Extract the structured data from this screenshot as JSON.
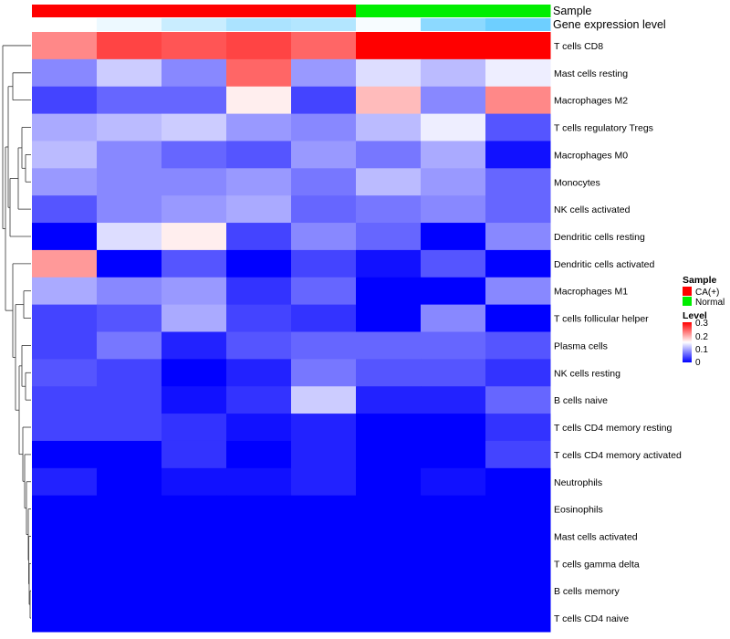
{
  "chart_data": {
    "type": "heatmap",
    "title": "",
    "columns": 8,
    "annotations": {
      "sample": {
        "label": "Sample",
        "values": [
          "CA(+)",
          "CA(+)",
          "CA(+)",
          "CA(+)",
          "CA(+)",
          "Normal",
          "Normal",
          "Normal"
        ]
      },
      "gene_expression_level": {
        "label": "Gene expression level",
        "values": [
          0.0,
          0.12,
          0.35,
          0.55,
          0.5,
          0.05,
          0.75,
          0.95
        ],
        "colors_low_high": [
          "#ffffff",
          "#66ccff"
        ]
      }
    },
    "rows": [
      "T cells CD8",
      "Mast cells resting",
      "Macrophages M2",
      "T cells regulatory  Tregs",
      "Macrophages M0",
      "Monocytes",
      "NK cells activated",
      "Dendritic cells resting",
      "Dendritic cells activated",
      "Macrophages M1",
      "T cells follicular helper",
      "Plasma cells",
      "NK cells resting",
      "B cells naive",
      "T cells CD4 memory resting",
      "T cells CD4 memory activated",
      "Neutrophils",
      "Eosinophils",
      "Mast cells activated",
      "T cells gamma delta",
      "B cells memory",
      "T cells CD4 naive"
    ],
    "values": [
      [
        0.22,
        0.26,
        0.25,
        0.26,
        0.24,
        0.3,
        0.3,
        0.3
      ],
      [
        0.08,
        0.12,
        0.08,
        0.24,
        0.09,
        0.13,
        0.11,
        0.14
      ],
      [
        0.04,
        0.06,
        0.06,
        0.16,
        0.04,
        0.19,
        0.08,
        0.22
      ],
      [
        0.1,
        0.11,
        0.12,
        0.09,
        0.08,
        0.11,
        0.14,
        0.05
      ],
      [
        0.11,
        0.08,
        0.06,
        0.05,
        0.09,
        0.07,
        0.1,
        0.01
      ],
      [
        0.09,
        0.08,
        0.08,
        0.09,
        0.07,
        0.11,
        0.09,
        0.06
      ],
      [
        0.05,
        0.08,
        0.09,
        0.1,
        0.06,
        0.07,
        0.08,
        0.06
      ],
      [
        0.0,
        0.13,
        0.16,
        0.04,
        0.08,
        0.06,
        0.0,
        0.08
      ],
      [
        0.21,
        0.0,
        0.05,
        0.0,
        0.04,
        0.01,
        0.05,
        0.0
      ],
      [
        0.1,
        0.08,
        0.09,
        0.03,
        0.06,
        0.0,
        0.0,
        0.08
      ],
      [
        0.04,
        0.05,
        0.1,
        0.04,
        0.03,
        0.0,
        0.08,
        0.0
      ],
      [
        0.04,
        0.07,
        0.02,
        0.05,
        0.06,
        0.06,
        0.06,
        0.05
      ],
      [
        0.05,
        0.04,
        0.0,
        0.02,
        0.07,
        0.05,
        0.05,
        0.03
      ],
      [
        0.04,
        0.04,
        0.01,
        0.03,
        0.12,
        0.02,
        0.02,
        0.06
      ],
      [
        0.04,
        0.04,
        0.03,
        0.01,
        0.02,
        0.0,
        0.0,
        0.03
      ],
      [
        0.0,
        0.0,
        0.03,
        0.0,
        0.02,
        0.0,
        0.0,
        0.04
      ],
      [
        0.02,
        0.0,
        0.01,
        0.01,
        0.02,
        0.0,
        0.01,
        0.0
      ],
      [
        0.0,
        0.0,
        0.0,
        0.0,
        0.0,
        0.0,
        0.0,
        0.0
      ],
      [
        0.0,
        0.0,
        0.0,
        0.0,
        0.0,
        0.0,
        0.0,
        0.0
      ],
      [
        0.0,
        0.0,
        0.0,
        0.0,
        0.0,
        0.0,
        0.0,
        0.0
      ],
      [
        0.0,
        0.0,
        0.0,
        0.0,
        0.0,
        0.0,
        0.0,
        0.0
      ],
      [
        0.0,
        0.0,
        0.0,
        0.0,
        0.0,
        0.0,
        0.0,
        0.0
      ]
    ],
    "color_scale": {
      "min": 0,
      "max": 0.3,
      "stops": [
        {
          "value": 0.0,
          "color": "#0000ff"
        },
        {
          "value": 0.15,
          "color": "#ffffff"
        },
        {
          "value": 0.3,
          "color": "#ff0000"
        }
      ]
    },
    "legend": {
      "sample_title": "Sample",
      "sample_items": [
        {
          "label": "CA(+)",
          "color": "#ff0000"
        },
        {
          "label": "Normal",
          "color": "#00ee00"
        }
      ],
      "level_title": "Level",
      "level_ticks": [
        "0.3",
        "0.2",
        "0.1",
        "0"
      ],
      "placement": "right"
    },
    "row_dendrogram": true
  }
}
